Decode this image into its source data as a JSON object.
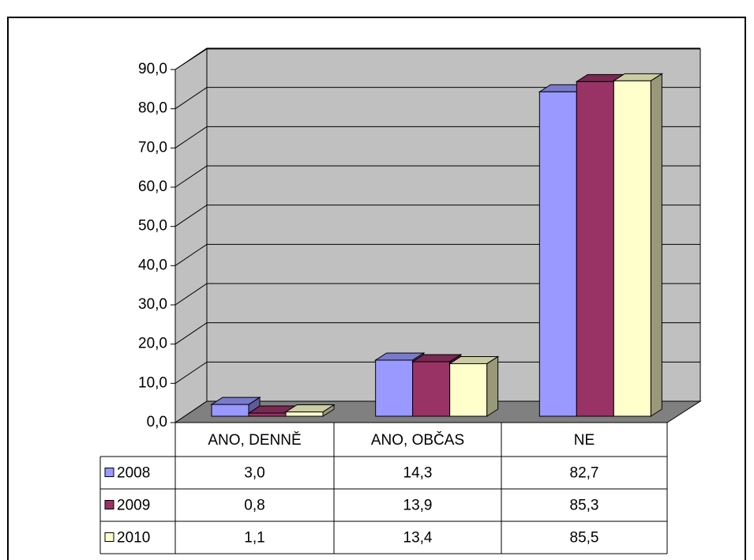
{
  "chart_data": {
    "type": "bar",
    "categories": [
      "ANO, DENNĚ",
      "ANO, OBČAS",
      "NE"
    ],
    "series": [
      {
        "name": "2008",
        "color": "#9999ff",
        "values": [
          3.0,
          14.3,
          82.7
        ],
        "value_labels": [
          "3,0",
          "14,3",
          "82,7"
        ]
      },
      {
        "name": "2009",
        "color": "#993366",
        "values": [
          0.8,
          13.9,
          85.3
        ],
        "value_labels": [
          "0,8",
          "13,9",
          "85,3"
        ]
      },
      {
        "name": "2010",
        "color": "#ffffcc",
        "values": [
          1.1,
          13.4,
          85.5
        ],
        "value_labels": [
          "1,1",
          "13,4",
          "85,5"
        ]
      }
    ],
    "ylim": [
      0,
      90
    ],
    "yticks": [
      {
        "value": 0,
        "label": "0,0"
      },
      {
        "value": 10,
        "label": "10,0"
      },
      {
        "value": 20,
        "label": "20,0"
      },
      {
        "value": 30,
        "label": "30,0"
      },
      {
        "value": 40,
        "label": "40,0"
      },
      {
        "value": 50,
        "label": "50,0"
      },
      {
        "value": 60,
        "label": "60,0"
      },
      {
        "value": 70,
        "label": "70,0"
      },
      {
        "value": 80,
        "label": "80,0"
      },
      {
        "value": 90,
        "label": "90,0"
      }
    ],
    "grid": true
  }
}
